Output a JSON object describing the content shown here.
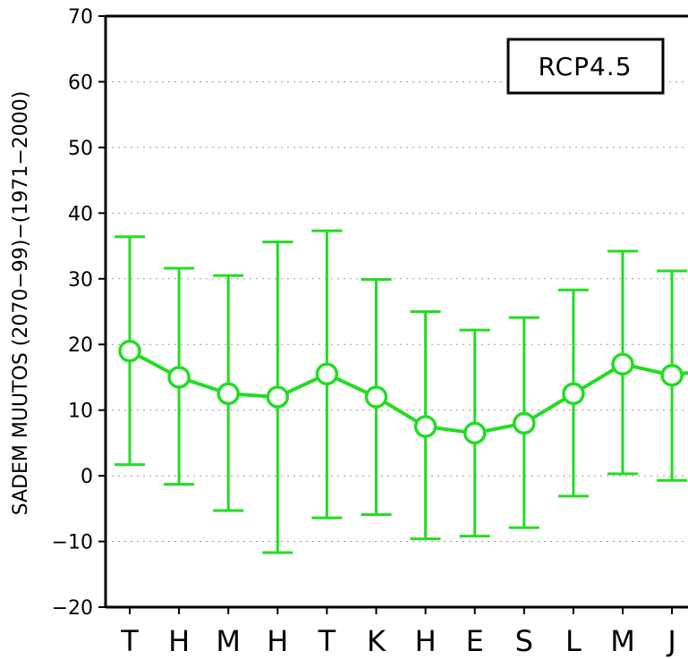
{
  "chart_data": {
    "type": "line",
    "title": "",
    "ylabel": "SADEM MUUTOS (2070−99)−(1971−2000)",
    "xlabel": "",
    "ylim": [
      -20,
      70
    ],
    "yticks": [
      -20,
      -10,
      0,
      10,
      20,
      30,
      40,
      50,
      60,
      70
    ],
    "yticks_labels": [
      "−20",
      "−10",
      "0",
      "10",
      "20",
      "30",
      "40",
      "50",
      "60",
      "70"
    ],
    "grid": "horizontal dotted",
    "categories": [
      "T",
      "H",
      "M",
      "H",
      "T",
      "K",
      "H",
      "E",
      "S",
      "L",
      "M",
      "J"
    ],
    "series": [
      {
        "color": "#22dd22",
        "values": [
          19,
          15,
          12.5,
          12,
          15.5,
          12,
          7.5,
          6.5,
          8,
          12.5,
          17,
          15.3
        ],
        "lower": [
          1.7,
          -1.3,
          -5.3,
          -11.7,
          -6.4,
          -5.9,
          -9.6,
          -9.2,
          -7.9,
          -3.1,
          0.3,
          -0.7
        ],
        "upper": [
          36.4,
          31.6,
          30.5,
          35.6,
          37.3,
          29.9,
          25,
          22.2,
          24.1,
          28.3,
          34.2,
          31.2
        ]
      }
    ],
    "line_continues_right_to": 15.7,
    "legend_box": {
      "text": "RCP4.5",
      "placement": "top-right"
    }
  }
}
